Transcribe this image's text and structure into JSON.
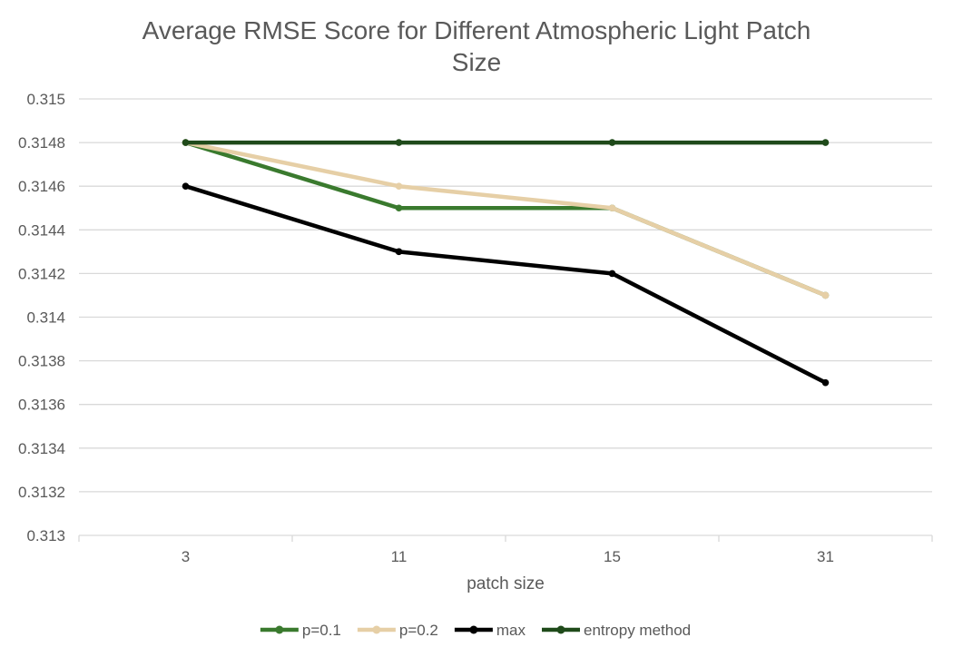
{
  "chart_data": {
    "type": "line",
    "title_lines": [
      "Average RMSE Score for Different Atmospheric Light Patch",
      "Size"
    ],
    "xlabel": "patch size",
    "ylabel": "",
    "categories": [
      "3",
      "11",
      "15",
      "31"
    ],
    "y_ticks": [
      "0.313",
      "0.3132",
      "0.3134",
      "0.3136",
      "0.3138",
      "0.314",
      "0.3142",
      "0.3144",
      "0.3146",
      "0.3148",
      "0.315"
    ],
    "ylim": [
      0.313,
      0.315
    ],
    "grid": true,
    "legend_position": "bottom",
    "series": [
      {
        "name": "p=0.1",
        "color": "#3a7a2e",
        "values": [
          0.3148,
          0.3145,
          0.3145,
          0.3141
        ]
      },
      {
        "name": "p=0.2",
        "color": "#e6cfa6",
        "values": [
          0.3148,
          0.3146,
          0.3145,
          0.3141
        ]
      },
      {
        "name": "max",
        "color": "#000000",
        "values": [
          0.3146,
          0.3143,
          0.3142,
          0.3137
        ]
      },
      {
        "name": "entropy method",
        "color": "#1f4a1a",
        "values": [
          0.3148,
          0.3148,
          0.3148,
          0.3148
        ]
      }
    ]
  }
}
